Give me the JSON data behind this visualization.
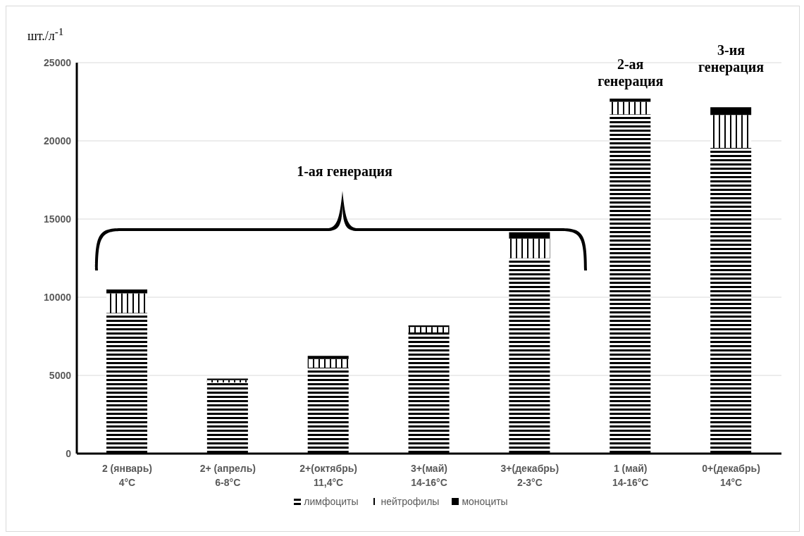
{
  "chart_data": {
    "type": "bar",
    "stacked": true,
    "ylabel": "шт./л$^{-1}$",
    "categories": [
      "2 (январь)\n4°C",
      "2+ (апрель)\n6-8°C",
      "2+(октябрь)\n11,4°C",
      "3+(май)\n14-16°C",
      "3+(декабрь)\n2-3°C",
      "1 (май)\n14-16°C",
      "0+(декабрь)\n14°C"
    ],
    "series": [
      {
        "name": "лимфоциты",
        "color": "#000000",
        "values": [
          9000,
          4550,
          5500,
          7750,
          12500,
          21700,
          19550
        ]
      },
      {
        "name": "нейтрофилы",
        "color": "#000000",
        "values": [
          1250,
          150,
          550,
          350,
          1250,
          800,
          2100
        ]
      },
      {
        "name": "моноциты",
        "color": "#000000",
        "values": [
          250,
          100,
          200,
          100,
          400,
          200,
          500
        ]
      }
    ],
    "ylim": [
      0,
      25000
    ],
    "yticks": [
      0,
      5000,
      10000,
      15000,
      20000,
      25000
    ],
    "grid": "y",
    "legend": "bottom",
    "annotations": [
      "1-ая генерация",
      "2-ая\nгенерация",
      "3-ия\nгенерация"
    ]
  }
}
